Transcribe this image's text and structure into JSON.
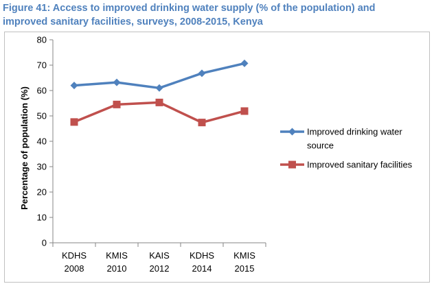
{
  "figure": {
    "title_line1": "Figure 41: Access to improved drinking water supply (% of the population) and",
    "title_line2": "improved sanitary facilities, surveys, 2008-2015, Kenya"
  },
  "chart_data": {
    "type": "line",
    "categories": [
      [
        "KDHS",
        "2008"
      ],
      [
        "KMIS",
        "2010"
      ],
      [
        "KAIS",
        "2012"
      ],
      [
        "KDHS",
        "2014"
      ],
      [
        "KMIS",
        "2015"
      ]
    ],
    "series": [
      {
        "name_lines": [
          "Improved drinking water",
          "source"
        ],
        "name": "Improved drinking water source",
        "values": [
          62,
          63.2,
          61,
          66.8,
          70.7
        ],
        "color": "#4f81bd",
        "marker": "diamond"
      },
      {
        "name_lines": [
          "Improved sanitary facilities"
        ],
        "name": "Improved sanitary facilities",
        "values": [
          47.6,
          54.5,
          55.3,
          47.4,
          51.9
        ],
        "color": "#c0504d",
        "marker": "square"
      }
    ],
    "ylabel": "Percentage of population (%)",
    "xlabel": "",
    "ylim": [
      0,
      80
    ],
    "yticks": [
      0,
      10,
      20,
      30,
      40,
      50,
      60,
      70,
      80
    ],
    "grid": false,
    "legend_position": "right"
  }
}
